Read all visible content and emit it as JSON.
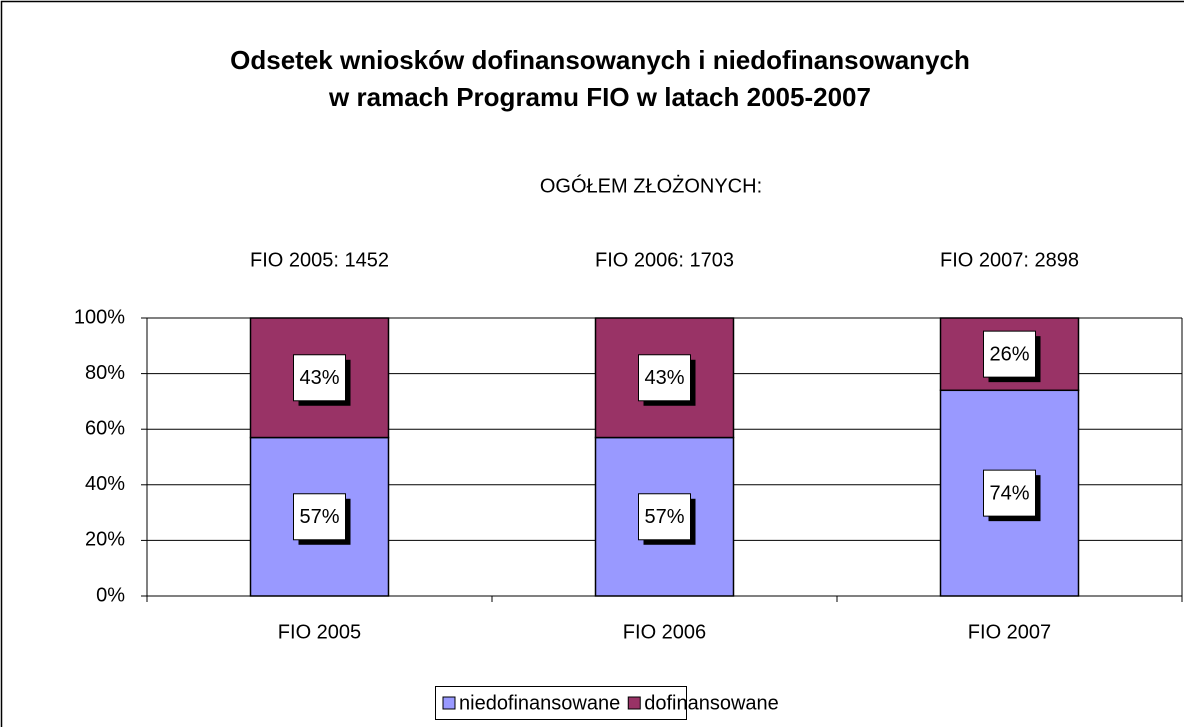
{
  "chart_data": {
    "type": "stacked_bar",
    "title": [
      "Odsetek wniosków dofinansowanych  i niedofinansowanych",
      "w ramach Programu FIO  w latach 2005-2007"
    ],
    "subtitle": "OGÓŁEM ZŁOŻONYCH:",
    "annotations": [
      "FIO 2005: 1452",
      "FIO 2006: 1703",
      "FIO 2007: 2898"
    ],
    "categories": [
      "FIO 2005",
      "FIO 2006",
      "FIO 2007"
    ],
    "series": [
      {
        "name": "niedofinansowane",
        "color": "#9999ff",
        "values": [
          57,
          57,
          74
        ],
        "value_labels": [
          "57%",
          "57%",
          "74%"
        ]
      },
      {
        "name": "dofinansowane",
        "color": "#993366",
        "values": [
          43,
          43,
          26
        ],
        "value_labels": [
          "43%",
          "43%",
          "26%"
        ]
      }
    ],
    "ylim": [
      0,
      100
    ],
    "yticks": [
      {
        "value": 0,
        "label": "0%"
      },
      {
        "value": 20,
        "label": "20%"
      },
      {
        "value": 40,
        "label": "40%"
      },
      {
        "value": 60,
        "label": "60%"
      },
      {
        "value": 80,
        "label": "80%"
      },
      {
        "value": 100,
        "label": "100%"
      }
    ],
    "grid": true,
    "legend": "bottom"
  }
}
